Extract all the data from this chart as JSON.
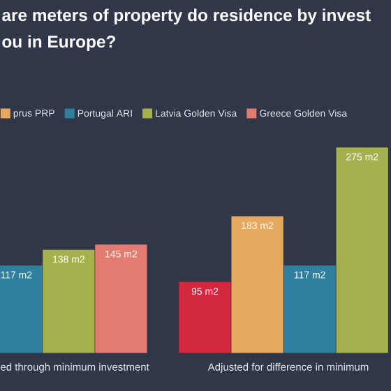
{
  "chart_data": {
    "type": "bar",
    "title": "are meters of property do residence by invest",
    "subtitle": "ou in Europe?",
    "categories": [
      "ed through minimum investment",
      "Adjusted for difference in minimum"
    ],
    "series": [
      {
        "color": "#d1283f",
        "values": [
          null,
          95
        ],
        "value_labels": [
          null,
          "95 m2"
        ]
      },
      {
        "name": "prus PRP",
        "color": "#e6a85c",
        "values": [
          null,
          183
        ],
        "value_labels": [
          null,
          "183 m2"
        ]
      },
      {
        "name": "Portugal ARI",
        "color": "#2f7f9e",
        "values": [
          117,
          117
        ],
        "value_labels": [
          "117 m2",
          "117 m2"
        ]
      },
      {
        "name": "Latvia Golden Visa",
        "color": "#a4b14d",
        "values": [
          138,
          275
        ],
        "value_labels": [
          "138 m2",
          "275 m2"
        ]
      },
      {
        "name": "Greece Golden Visa",
        "color": "#e27b70",
        "values": [
          145,
          null
        ],
        "value_labels": [
          "145 m2",
          null
        ]
      }
    ],
    "legend": "top"
  }
}
